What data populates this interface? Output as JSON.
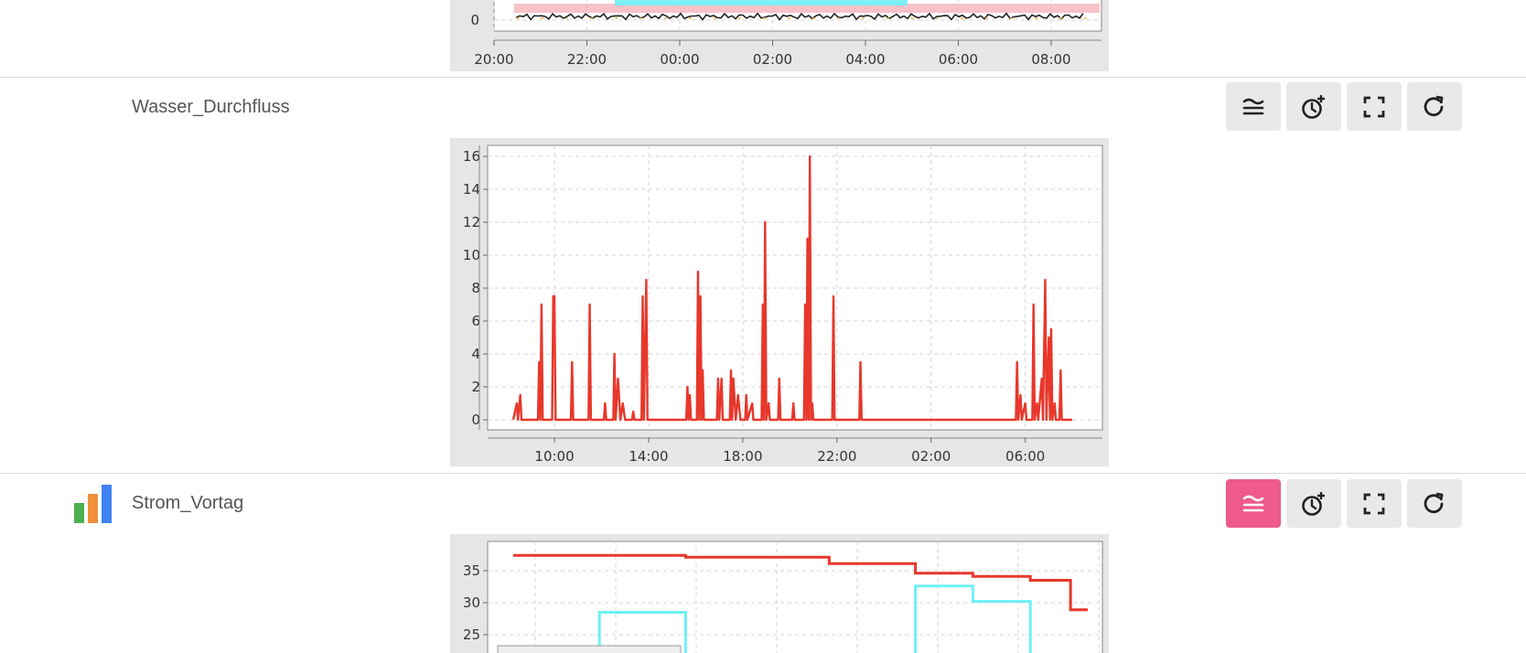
{
  "rows": [
    {
      "title": "",
      "chart_index": 0
    },
    {
      "title": "Wasser_Durchfluss",
      "chart_index": 1
    },
    {
      "title": "Strom_Vortag",
      "chart_index": 2
    }
  ],
  "toolbar_icons": [
    "stack-lines-icon",
    "clock-plus-icon",
    "fullscreen-icon",
    "refresh-icon"
  ],
  "colors": {
    "accent": "#ee5a8a",
    "series_red": "#e8372b",
    "series_cyan": "#6ef0f5"
  },
  "chart_data": [
    {
      "type": "line",
      "title": "",
      "x_ticks": [
        "20:00",
        "22:00",
        "00:00",
        "02:00",
        "04:00",
        "06:00",
        "08:00"
      ],
      "y_ticks": [
        "0"
      ],
      "partial": true
    },
    {
      "type": "line",
      "title": "",
      "x_ticks": [
        "10:00",
        "14:00",
        "18:00",
        "22:00",
        "02:00",
        "06:00"
      ],
      "y_ticks": [
        "0",
        "2",
        "4",
        "6",
        "8",
        "10",
        "12",
        "14",
        "16"
      ],
      "ylim": [
        0,
        16
      ],
      "series": [
        {
          "color": "#e8372b",
          "points": [
            [
              8.25,
              0
            ],
            [
              8.4,
              1
            ],
            [
              8.45,
              0
            ],
            [
              8.55,
              1.5
            ],
            [
              8.6,
              0
            ],
            [
              9.3,
              0
            ],
            [
              9.35,
              3.5
            ],
            [
              9.4,
              0
            ],
            [
              9.45,
              7
            ],
            [
              9.5,
              0
            ],
            [
              9.9,
              0
            ],
            [
              9.95,
              7.5
            ],
            [
              10.0,
              7.5
            ],
            [
              10.05,
              0
            ],
            [
              10.7,
              0
            ],
            [
              10.75,
              3.5
            ],
            [
              10.8,
              0
            ],
            [
              11.45,
              0
            ],
            [
              11.5,
              7
            ],
            [
              11.55,
              0
            ],
            [
              12.1,
              0
            ],
            [
              12.15,
              1
            ],
            [
              12.2,
              0
            ],
            [
              12.5,
              0
            ],
            [
              12.55,
              4
            ],
            [
              12.6,
              0
            ],
            [
              12.7,
              2.5
            ],
            [
              12.8,
              0
            ],
            [
              12.9,
              1
            ],
            [
              13.0,
              0
            ],
            [
              13.3,
              0
            ],
            [
              13.35,
              0.5
            ],
            [
              13.4,
              0
            ],
            [
              13.7,
              0
            ],
            [
              13.75,
              7.5
            ],
            [
              13.8,
              0
            ],
            [
              13.9,
              8.5
            ],
            [
              13.95,
              0
            ],
            [
              15.6,
              0
            ],
            [
              15.65,
              2
            ],
            [
              15.7,
              0
            ],
            [
              15.75,
              1.5
            ],
            [
              15.8,
              0
            ],
            [
              16.05,
              0
            ],
            [
              16.1,
              9
            ],
            [
              16.15,
              0
            ],
            [
              16.2,
              7.5
            ],
            [
              16.25,
              0
            ],
            [
              16.3,
              3
            ],
            [
              16.35,
              0
            ],
            [
              16.9,
              0
            ],
            [
              16.95,
              2.5
            ],
            [
              17.0,
              0
            ],
            [
              17.1,
              2.5
            ],
            [
              17.15,
              0
            ],
            [
              17.45,
              0
            ],
            [
              17.5,
              3
            ],
            [
              17.55,
              0
            ],
            [
              17.6,
              2.5
            ],
            [
              17.7,
              0
            ],
            [
              17.8,
              1.5
            ],
            [
              17.9,
              0
            ],
            [
              18.1,
              0
            ],
            [
              18.15,
              1.5
            ],
            [
              18.2,
              0
            ],
            [
              18.4,
              1
            ],
            [
              18.45,
              0
            ],
            [
              18.8,
              0
            ],
            [
              18.85,
              7
            ],
            [
              18.9,
              0
            ],
            [
              18.95,
              12
            ],
            [
              19.0,
              0
            ],
            [
              19.1,
              1
            ],
            [
              19.15,
              0
            ],
            [
              19.5,
              0
            ],
            [
              19.55,
              2.5
            ],
            [
              19.6,
              0
            ],
            [
              20.1,
              0
            ],
            [
              20.15,
              1
            ],
            [
              20.2,
              0
            ],
            [
              20.6,
              0
            ],
            [
              20.65,
              7
            ],
            [
              20.7,
              0
            ],
            [
              20.75,
              11
            ],
            [
              20.8,
              0
            ],
            [
              20.85,
              16
            ],
            [
              20.9,
              0
            ],
            [
              20.95,
              1
            ],
            [
              21.0,
              0
            ],
            [
              21.8,
              0
            ],
            [
              21.85,
              7.5
            ],
            [
              21.9,
              0
            ],
            [
              22.95,
              0
            ],
            [
              23.0,
              3.5
            ],
            [
              23.05,
              0
            ],
            [
              29.6,
              0
            ],
            [
              29.65,
              3.5
            ],
            [
              29.7,
              0
            ],
            [
              29.8,
              1.5
            ],
            [
              29.85,
              0
            ],
            [
              30.0,
              1
            ],
            [
              30.05,
              0
            ],
            [
              30.3,
              0
            ],
            [
              30.35,
              7
            ],
            [
              30.4,
              0
            ],
            [
              30.5,
              1
            ],
            [
              30.55,
              0
            ],
            [
              30.7,
              2.5
            ],
            [
              30.75,
              0
            ],
            [
              30.85,
              8.5
            ],
            [
              30.9,
              0
            ],
            [
              31.0,
              5
            ],
            [
              31.05,
              0
            ],
            [
              31.1,
              5.5
            ],
            [
              31.15,
              0
            ],
            [
              31.25,
              1
            ],
            [
              31.3,
              0
            ],
            [
              31.45,
              0
            ],
            [
              31.5,
              3
            ],
            [
              31.55,
              0
            ],
            [
              32.0,
              0
            ]
          ]
        }
      ],
      "x_range_hours": [
        8.25,
        32.5
      ]
    },
    {
      "type": "line",
      "title": "",
      "y_ticks": [
        "25",
        "30",
        "35"
      ],
      "partial": true,
      "series": [
        {
          "color": "#e8372b",
          "steps": [
            [
              0,
              37.4
            ],
            [
              0.3,
              37.1
            ],
            [
              0.55,
              36.1
            ],
            [
              0.7,
              34.6
            ],
            [
              0.8,
              34.1
            ],
            [
              0.9,
              33.5
            ],
            [
              0.97,
              28.9
            ],
            [
              1,
              28.9
            ]
          ]
        },
        {
          "color": "#6ef0f5",
          "steps": [
            [
              0.15,
              28.5
            ],
            [
              0.3,
              null
            ],
            [
              0.7,
              32.6
            ],
            [
              0.8,
              30.2
            ],
            [
              0.9,
              null
            ]
          ]
        }
      ]
    }
  ]
}
